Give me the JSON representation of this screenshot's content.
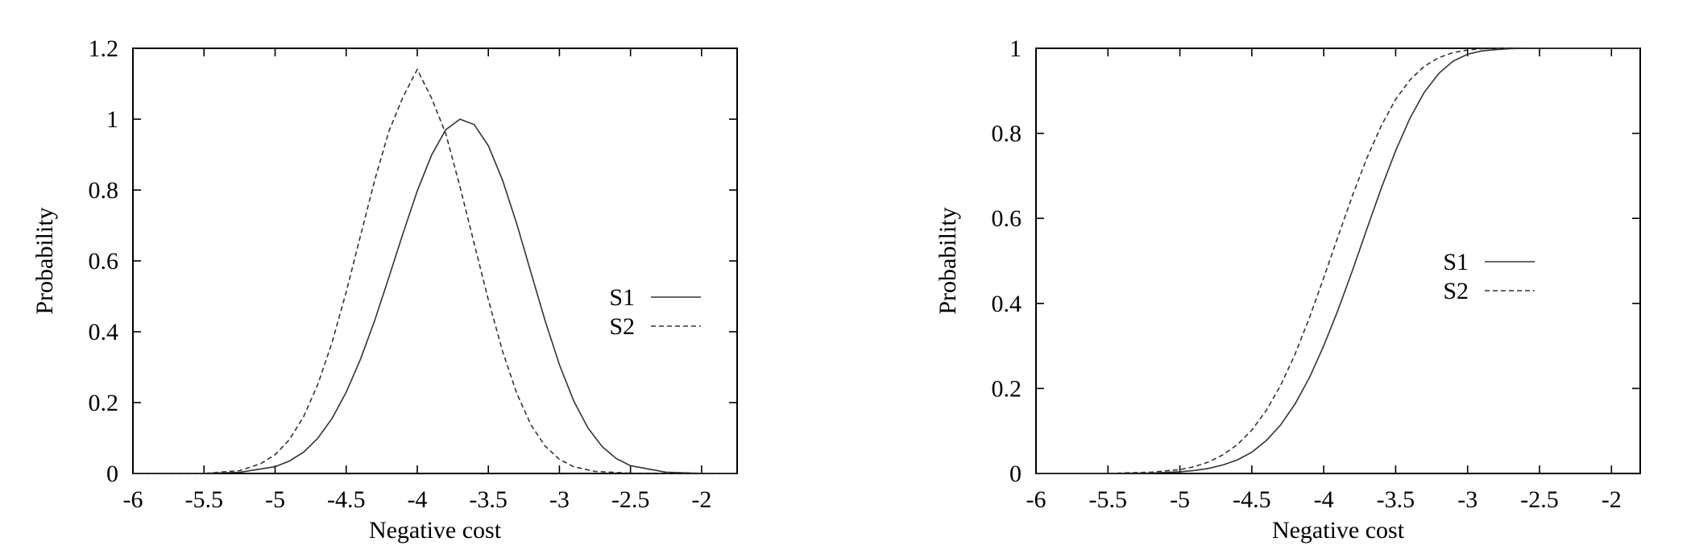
{
  "chart_data": [
    {
      "type": "line",
      "xlabel": "Negative cost",
      "ylabel": "Probability",
      "xlim": [
        -6,
        -1.75
      ],
      "ylim": [
        0,
        1.2
      ],
      "xticks": [
        -6,
        -5.5,
        -5,
        -4.5,
        -4,
        -3.5,
        -3,
        -2.5,
        -2
      ],
      "xtick_labels": [
        "-6",
        "-5.5",
        "-5",
        "-4.5",
        "-4",
        "-3.5",
        "-3",
        "-2.5",
        "-2"
      ],
      "yticks": [
        0,
        0.2,
        0.4,
        0.6,
        0.8,
        1,
        1.2
      ],
      "ytick_labels": [
        "0",
        "0.2",
        "0.4",
        "0.6",
        "0.8",
        "1",
        "1.2"
      ],
      "grid": false,
      "legend_position": "right",
      "series": [
        {
          "name": "S1",
          "style": "solid",
          "x": [
            -6,
            -5.5,
            -5.25,
            -5,
            -4.9,
            -4.8,
            -4.7,
            -4.6,
            -4.5,
            -4.4,
            -4.3,
            -4.2,
            -4.1,
            -4,
            -3.9,
            -3.8,
            -3.7,
            -3.6,
            -3.5,
            -3.4,
            -3.3,
            -3.2,
            -3.1,
            -3,
            -2.9,
            -2.8,
            -2.7,
            -2.6,
            -2.5,
            -2.25,
            -2,
            -1.75
          ],
          "values": [
            0,
            0.0004,
            0.0032,
            0.019,
            0.035,
            0.06,
            0.099,
            0.155,
            0.229,
            0.322,
            0.431,
            0.553,
            0.678,
            0.797,
            0.898,
            0.97,
            1.0,
            0.985,
            0.925,
            0.828,
            0.704,
            0.567,
            0.43,
            0.307,
            0.205,
            0.129,
            0.076,
            0.042,
            0.022,
            0.0036,
            0.0004,
            0
          ]
        },
        {
          "name": "S2",
          "style": "dashed",
          "x": [
            -6,
            -5.5,
            -5.25,
            -5.1,
            -5,
            -4.9,
            -4.8,
            -4.7,
            -4.6,
            -4.5,
            -4.4,
            -4.3,
            -4.2,
            -4.1,
            -4,
            -3.9,
            -3.8,
            -3.7,
            -3.6,
            -3.5,
            -3.4,
            -3.3,
            -3.2,
            -3.1,
            -3,
            -2.9,
            -2.75,
            -2.5,
            -2,
            -1.75
          ],
          "values": [
            0,
            0.0003,
            0.008,
            0.028,
            0.053,
            0.095,
            0.16,
            0.251,
            0.369,
            0.512,
            0.67,
            0.827,
            0.965,
            1.063,
            1.14,
            1.06,
            0.96,
            0.81,
            0.65,
            0.49,
            0.345,
            0.226,
            0.137,
            0.077,
            0.04,
            0.019,
            0.006,
            0.0008,
            0,
            0
          ]
        }
      ]
    },
    {
      "type": "line",
      "xlabel": "Negative cost",
      "ylabel": "Probability",
      "xlim": [
        -6,
        -1.8
      ],
      "ylim": [
        0,
        1
      ],
      "xticks": [
        -6,
        -5.5,
        -5,
        -4.5,
        -4,
        -3.5,
        -3,
        -2.5,
        -2
      ],
      "xtick_labels": [
        "-6",
        "-5.5",
        "-5",
        "-4.5",
        "-4",
        "-3.5",
        "-3",
        "-2.5",
        "-2"
      ],
      "yticks": [
        0,
        0.2,
        0.4,
        0.6,
        0.8,
        1
      ],
      "ytick_labels": [
        "0",
        "0.2",
        "0.4",
        "0.6",
        "0.8",
        "1"
      ],
      "grid": false,
      "legend_position": "right",
      "series": [
        {
          "name": "S1",
          "style": "solid",
          "x": [
            -6,
            -5.5,
            -5.2,
            -5,
            -4.9,
            -4.8,
            -4.7,
            -4.6,
            -4.5,
            -4.4,
            -4.3,
            -4.2,
            -4.1,
            -4,
            -3.9,
            -3.8,
            -3.7,
            -3.6,
            -3.5,
            -3.4,
            -3.3,
            -3.2,
            -3.1,
            -3,
            -2.9,
            -2.8,
            -2.7,
            -2.6,
            -2.5,
            -2.25,
            -2,
            -1.8
          ],
          "values": [
            0,
            0.0002,
            0.0012,
            0.004,
            0.007,
            0.012,
            0.02,
            0.032,
            0.05,
            0.077,
            0.114,
            0.163,
            0.225,
            0.3,
            0.385,
            0.478,
            0.575,
            0.671,
            0.759,
            0.836,
            0.897,
            0.941,
            0.97,
            0.986,
            0.994,
            0.997,
            0.999,
            1,
            1,
            1,
            1,
            1
          ]
        },
        {
          "name": "S2",
          "style": "dashed",
          "x": [
            -6,
            -5.5,
            -5.2,
            -5,
            -4.9,
            -4.8,
            -4.7,
            -4.6,
            -4.5,
            -4.4,
            -4.3,
            -4.2,
            -4.1,
            -4,
            -3.9,
            -3.8,
            -3.7,
            -3.6,
            -3.5,
            -3.4,
            -3.3,
            -3.2,
            -3.1,
            -3,
            -2.9,
            -2.75,
            -2.5,
            -2,
            -1.8
          ],
          "values": [
            0,
            0.0004,
            0.003,
            0.009,
            0.016,
            0.027,
            0.044,
            0.068,
            0.102,
            0.148,
            0.207,
            0.28,
            0.366,
            0.46,
            0.558,
            0.654,
            0.742,
            0.818,
            0.88,
            0.926,
            0.958,
            0.978,
            0.99,
            0.996,
            0.999,
            1,
            1,
            1,
            1
          ]
        }
      ]
    }
  ]
}
